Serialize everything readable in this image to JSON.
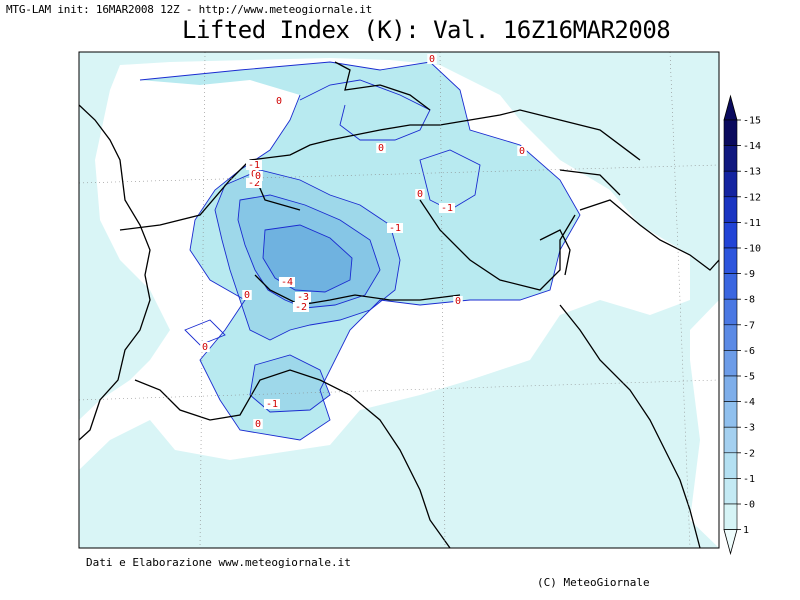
{
  "header": {
    "info": "MTG-LAM init: 16MAR2008 12Z - http://www.meteogiornale.it",
    "title": "Lifted Index (K): Val. 16Z16MAR2008"
  },
  "footer": {
    "source": "Dati e Elaborazione www.meteogiornale.it",
    "copyright": "(C) MeteoGiornale"
  },
  "legend": {
    "ticks": [
      "-15",
      "-14",
      "-13",
      "-12",
      "-11",
      "-10",
      "-9",
      "-8",
      "-7",
      "-6",
      "-5",
      "-4",
      "-3",
      "-2",
      "-1",
      "-0",
      "1"
    ],
    "colors": [
      "#0b0b5e",
      "#10187f",
      "#1424a0",
      "#1a35c2",
      "#2244d6",
      "#2d55dd",
      "#3a66e0",
      "#4a78e3",
      "#5b8ae5",
      "#6c9ce8",
      "#7eaeea",
      "#90c0ee",
      "#a4d0f0",
      "#b4e0f2",
      "#c4eaf4",
      "#d6f4f6",
      "#eefcfc"
    ]
  },
  "map": {
    "contour_labels": [
      {
        "text": "0",
        "kind": "zero"
      },
      {
        "text": "0",
        "kind": "zero"
      },
      {
        "text": "0",
        "kind": "zero"
      },
      {
        "text": "0",
        "kind": "zero"
      },
      {
        "text": "0",
        "kind": "zero"
      },
      {
        "text": "0",
        "kind": "zero"
      },
      {
        "text": "0",
        "kind": "zero"
      },
      {
        "text": "0",
        "kind": "zero"
      },
      {
        "text": "0",
        "kind": "zero"
      },
      {
        "text": "-1",
        "kind": "neg"
      },
      {
        "text": "-2",
        "kind": "neg"
      },
      {
        "text": "-1",
        "kind": "neg"
      },
      {
        "text": "-1",
        "kind": "neg"
      },
      {
        "text": "-4",
        "kind": "neg"
      },
      {
        "text": "-3",
        "kind": "neg"
      },
      {
        "text": "-2",
        "kind": "neg"
      },
      {
        "text": "-1",
        "kind": "neg"
      },
      {
        "text": "0",
        "kind": "zero"
      },
      {
        "text": "0",
        "kind": "zero"
      }
    ]
  }
}
